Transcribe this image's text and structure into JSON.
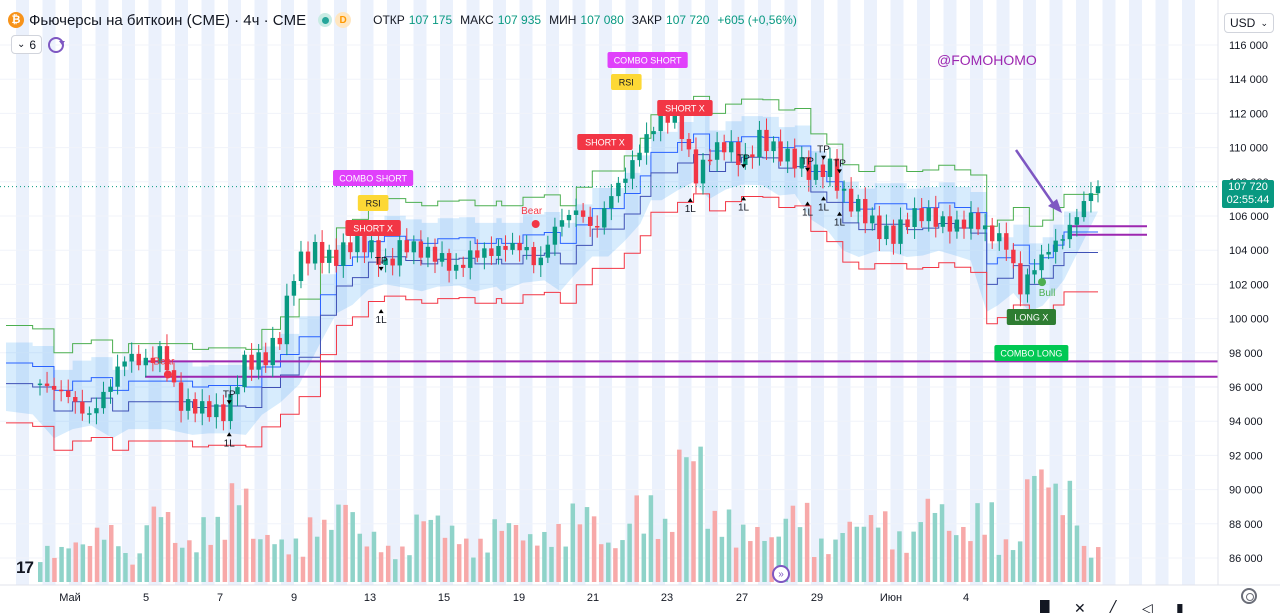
{
  "legend": {
    "symbol_icon": "bitcoin-icon",
    "title": "Фьючерсы на биткоин (CME) · 4ч · CME",
    "badge": "D",
    "open_label": "ОТКР",
    "open": "107 175",
    "high_label": "МАКС",
    "high": "107 935",
    "low_label": "МИН",
    "low": "107 080",
    "close_label": "ЗАКР",
    "close": "107 720",
    "change": "+605 (+0,56%)"
  },
  "indicators": {
    "count": "6"
  },
  "currency": "USD",
  "watermark": "@FOMOHOMO",
  "last_price": {
    "value": "107 720",
    "countdown": "02:55:44"
  },
  "logo_text": "17",
  "colors": {
    "up": "#089981",
    "down": "#f23645",
    "band_fill": "#2196f3",
    "signal_purple": "#9c27b0",
    "text": "#131722"
  },
  "chart_data": {
    "type": "candlestick",
    "x_labels": [
      "Май",
      "5",
      "7",
      "9",
      "13",
      "15",
      "19",
      "21",
      "23",
      "27",
      "29",
      "Июн",
      "4"
    ],
    "y_ticks": [
      86000,
      88000,
      90000,
      92000,
      94000,
      96000,
      98000,
      100000,
      102000,
      104000,
      106000,
      108000,
      110000,
      112000,
      114000,
      116000
    ],
    "ylim": [
      84600,
      117000
    ],
    "last_price": 107720,
    "horizontal_levels": [
      97500,
      96600
    ],
    "short_rays": [
      105400,
      104900
    ],
    "signals": [
      {
        "text": "COMBO SHORT",
        "kind": "combo_short",
        "bar": 12.5
      },
      {
        "text": "RSI",
        "kind": "rsi",
        "bar": 12.5
      },
      {
        "text": "SHORT X",
        "kind": "short",
        "bar": 12.5
      },
      {
        "text": "COMBO SHORT",
        "kind": "combo_short",
        "bar": 22.8
      },
      {
        "text": "RSI",
        "kind": "rsi",
        "bar": 22.0
      },
      {
        "text": "SHORT X",
        "kind": "short",
        "bar": 24.2
      },
      {
        "text": "SHORT X",
        "kind": "short",
        "bar": 21.2
      },
      {
        "text": "LONG X",
        "kind": "long",
        "bar": 37.2
      },
      {
        "text": "COMBO LONG",
        "kind": "combo_long",
        "bar": 37.2
      }
    ],
    "tp_labels": [
      {
        "text": "TP",
        "bar": 7.1,
        "price": 95400
      },
      {
        "text": "TP",
        "bar": 12.8,
        "price": 103200
      },
      {
        "text": "TP",
        "bar": 26.4,
        "price": 109200
      },
      {
        "text": "TP",
        "bar": 28.8,
        "price": 109000
      },
      {
        "text": "TP",
        "bar": 29.4,
        "price": 109700
      },
      {
        "text": "TP",
        "bar": 30.0,
        "price": 108900
      }
    ],
    "one_l_labels": [
      {
        "text": "1L",
        "bar": 7.1,
        "price": 93000
      },
      {
        "text": "1L",
        "bar": 12.8,
        "price": 100200
      },
      {
        "text": "1L",
        "bar": 24.4,
        "price": 106700
      },
      {
        "text": "1L",
        "bar": 26.4,
        "price": 106800
      },
      {
        "text": "1L",
        "bar": 28.8,
        "price": 106500
      },
      {
        "text": "1L",
        "bar": 29.4,
        "price": 106800
      },
      {
        "text": "1L",
        "bar": 30.0,
        "price": 105900
      }
    ],
    "markers": [
      {
        "text": "Bear",
        "bar": 4.8,
        "price": 97200,
        "color": "#f23645"
      },
      {
        "text": "Bear",
        "bar": 18.6,
        "price": 106000,
        "color": "#f23645"
      },
      {
        "text": "Bull",
        "bar": 37.6,
        "price": 102600,
        "color": "#4caf50"
      }
    ],
    "close_path": [
      {
        "bar": 0.0,
        "close": 96200
      },
      {
        "bar": 1.0,
        "close": 95600
      },
      {
        "bar": 1.8,
        "close": 94200
      },
      {
        "bar": 2.5,
        "close": 95800
      },
      {
        "bar": 3.2,
        "close": 97800
      },
      {
        "bar": 4.0,
        "close": 97400
      },
      {
        "bar": 4.6,
        "close": 98200
      },
      {
        "bar": 5.2,
        "close": 95000
      },
      {
        "bar": 6.0,
        "close": 94800
      },
      {
        "bar": 7.0,
        "close": 94400
      },
      {
        "bar": 7.6,
        "close": 97400
      },
      {
        "bar": 8.4,
        "close": 97600
      },
      {
        "bar": 9.0,
        "close": 99000
      },
      {
        "bar": 9.6,
        "close": 103200
      },
      {
        "bar": 10.3,
        "close": 104000
      },
      {
        "bar": 11.0,
        "close": 103400
      },
      {
        "bar": 11.8,
        "close": 104600
      },
      {
        "bar": 12.4,
        "close": 104200
      },
      {
        "bar": 13.0,
        "close": 103000
      },
      {
        "bar": 13.6,
        "close": 104400
      },
      {
        "bar": 14.2,
        "close": 104000
      },
      {
        "bar": 15.0,
        "close": 103600
      },
      {
        "bar": 15.6,
        "close": 102800
      },
      {
        "bar": 16.2,
        "close": 103800
      },
      {
        "bar": 17.0,
        "close": 103900
      },
      {
        "bar": 17.6,
        "close": 104300
      },
      {
        "bar": 18.4,
        "close": 104000
      },
      {
        "bar": 18.6,
        "close": 102800
      },
      {
        "bar": 19.4,
        "close": 105600
      },
      {
        "bar": 20.2,
        "close": 106400
      },
      {
        "bar": 20.8,
        "close": 105000
      },
      {
        "bar": 21.4,
        "close": 107200
      },
      {
        "bar": 22.0,
        "close": 108400
      },
      {
        "bar": 22.6,
        "close": 110200
      },
      {
        "bar": 23.2,
        "close": 111600
      },
      {
        "bar": 23.8,
        "close": 111800
      },
      {
        "bar": 24.2,
        "close": 110400
      },
      {
        "bar": 24.6,
        "close": 108200
      },
      {
        "bar": 25.2,
        "close": 109800
      },
      {
        "bar": 25.8,
        "close": 110200
      },
      {
        "bar": 26.4,
        "close": 109000
      },
      {
        "bar": 27.0,
        "close": 110600
      },
      {
        "bar": 27.6,
        "close": 109800
      },
      {
        "bar": 28.4,
        "close": 109200
      },
      {
        "bar": 29.0,
        "close": 108400
      },
      {
        "bar": 29.6,
        "close": 109000
      },
      {
        "bar": 30.2,
        "close": 107000
      },
      {
        "bar": 30.8,
        "close": 106400
      },
      {
        "bar": 31.4,
        "close": 105200
      },
      {
        "bar": 32.0,
        "close": 104800
      },
      {
        "bar": 32.6,
        "close": 105900
      },
      {
        "bar": 33.2,
        "close": 106200
      },
      {
        "bar": 33.8,
        "close": 105600
      },
      {
        "bar": 34.4,
        "close": 105400
      },
      {
        "bar": 35.0,
        "close": 105900
      },
      {
        "bar": 35.6,
        "close": 104900
      },
      {
        "bar": 36.2,
        "close": 104600
      },
      {
        "bar": 36.8,
        "close": 101600
      },
      {
        "bar": 37.2,
        "close": 102800
      },
      {
        "bar": 37.8,
        "close": 104000
      },
      {
        "bar": 38.4,
        "close": 104800
      },
      {
        "bar": 38.9,
        "close": 106000
      },
      {
        "bar": 39.3,
        "close": 107200
      },
      {
        "bar": 39.7,
        "close": 107720
      }
    ],
    "volume_relative": [
      0.25,
      0.3,
      0.4,
      0.2,
      0.55,
      0.3,
      0.45,
      0.7,
      0.35,
      0.3,
      0.45,
      0.6,
      0.35,
      0.25,
      0.5,
      0.4,
      0.3,
      0.45,
      0.35,
      0.4,
      0.55,
      0.3,
      0.6,
      0.45,
      1.0,
      0.5,
      0.4,
      0.35,
      0.55,
      0.3,
      0.45,
      0.5,
      0.35,
      0.6,
      0.4,
      0.55,
      0.3,
      0.85,
      0.7,
      0.25
    ]
  }
}
